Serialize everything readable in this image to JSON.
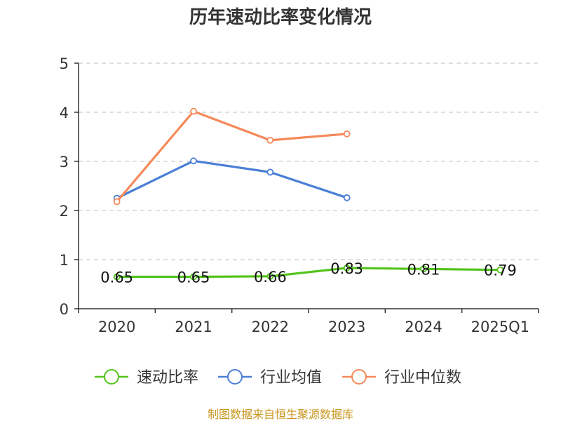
{
  "chart_data": {
    "type": "line",
    "title": "历年速动比率变化情况",
    "categories": [
      "2020",
      "2021",
      "2022",
      "2023",
      "2024",
      "2025Q1"
    ],
    "ylim": [
      0,
      5
    ],
    "yticks": [
      "0",
      "1",
      "2",
      "3",
      "4",
      "5"
    ],
    "grid": true,
    "legend_position": "bottom",
    "series": [
      {
        "name": "速动比率",
        "color": "#52c41a",
        "values": [
          0.65,
          0.65,
          0.66,
          0.83,
          0.81,
          0.79
        ],
        "labels": [
          "0.65",
          "0.65",
          "0.66",
          "0.83",
          "0.81",
          "0.79"
        ],
        "show_labels": true
      },
      {
        "name": "行业均值",
        "color": "#4a7fd6",
        "values": [
          2.25,
          3.01,
          2.78,
          2.26,
          null,
          null
        ],
        "show_labels": false
      },
      {
        "name": "行业中位数",
        "color": "#f5895a",
        "values": [
          2.18,
          4.02,
          3.43,
          3.56,
          null,
          null
        ],
        "show_labels": false
      }
    ]
  },
  "source": "制图数据来自恒生聚源数据库"
}
